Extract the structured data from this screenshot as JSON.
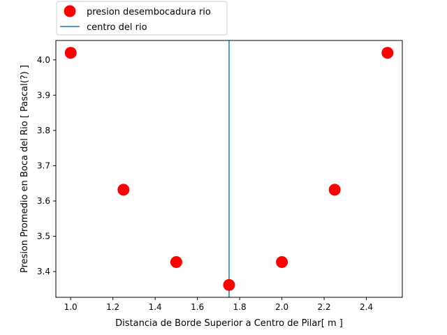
{
  "chart_data": {
    "type": "scatter",
    "xlabel": "Distancia de Borde Superior a Centro de Pilar[ m ]",
    "ylabel": "Presion Promedio en Boca del Rio [ Pascal(?) ]",
    "xlim": [
      0.93,
      2.57
    ],
    "ylim": [
      3.327,
      4.055
    ],
    "xticks": [
      1.0,
      1.2,
      1.4,
      1.6,
      1.8,
      2.0,
      2.2,
      2.4
    ],
    "xtick_labels": [
      "1.0",
      "1.2",
      "1.4",
      "1.6",
      "1.8",
      "2.0",
      "2.2",
      "2.4"
    ],
    "yticks": [
      3.4,
      3.5,
      3.6,
      3.7,
      3.8,
      3.9,
      4.0
    ],
    "ytick_labels": [
      "3.4",
      "3.5",
      "3.6",
      "3.7",
      "3.8",
      "3.9",
      "4.0"
    ],
    "grid": false,
    "legend_position": "above-left",
    "series": [
      {
        "name": "presion desembocadura rio",
        "kind": "scatter",
        "color": "#ff0000",
        "x": [
          1.0,
          1.25,
          1.5,
          1.75,
          2.0,
          2.25,
          2.5
        ],
        "y": [
          4.02,
          3.632,
          3.427,
          3.362,
          3.427,
          3.632,
          4.02
        ]
      },
      {
        "name": "centro del rio",
        "kind": "vline",
        "color": "#1f77b4",
        "x": 1.75
      }
    ]
  }
}
